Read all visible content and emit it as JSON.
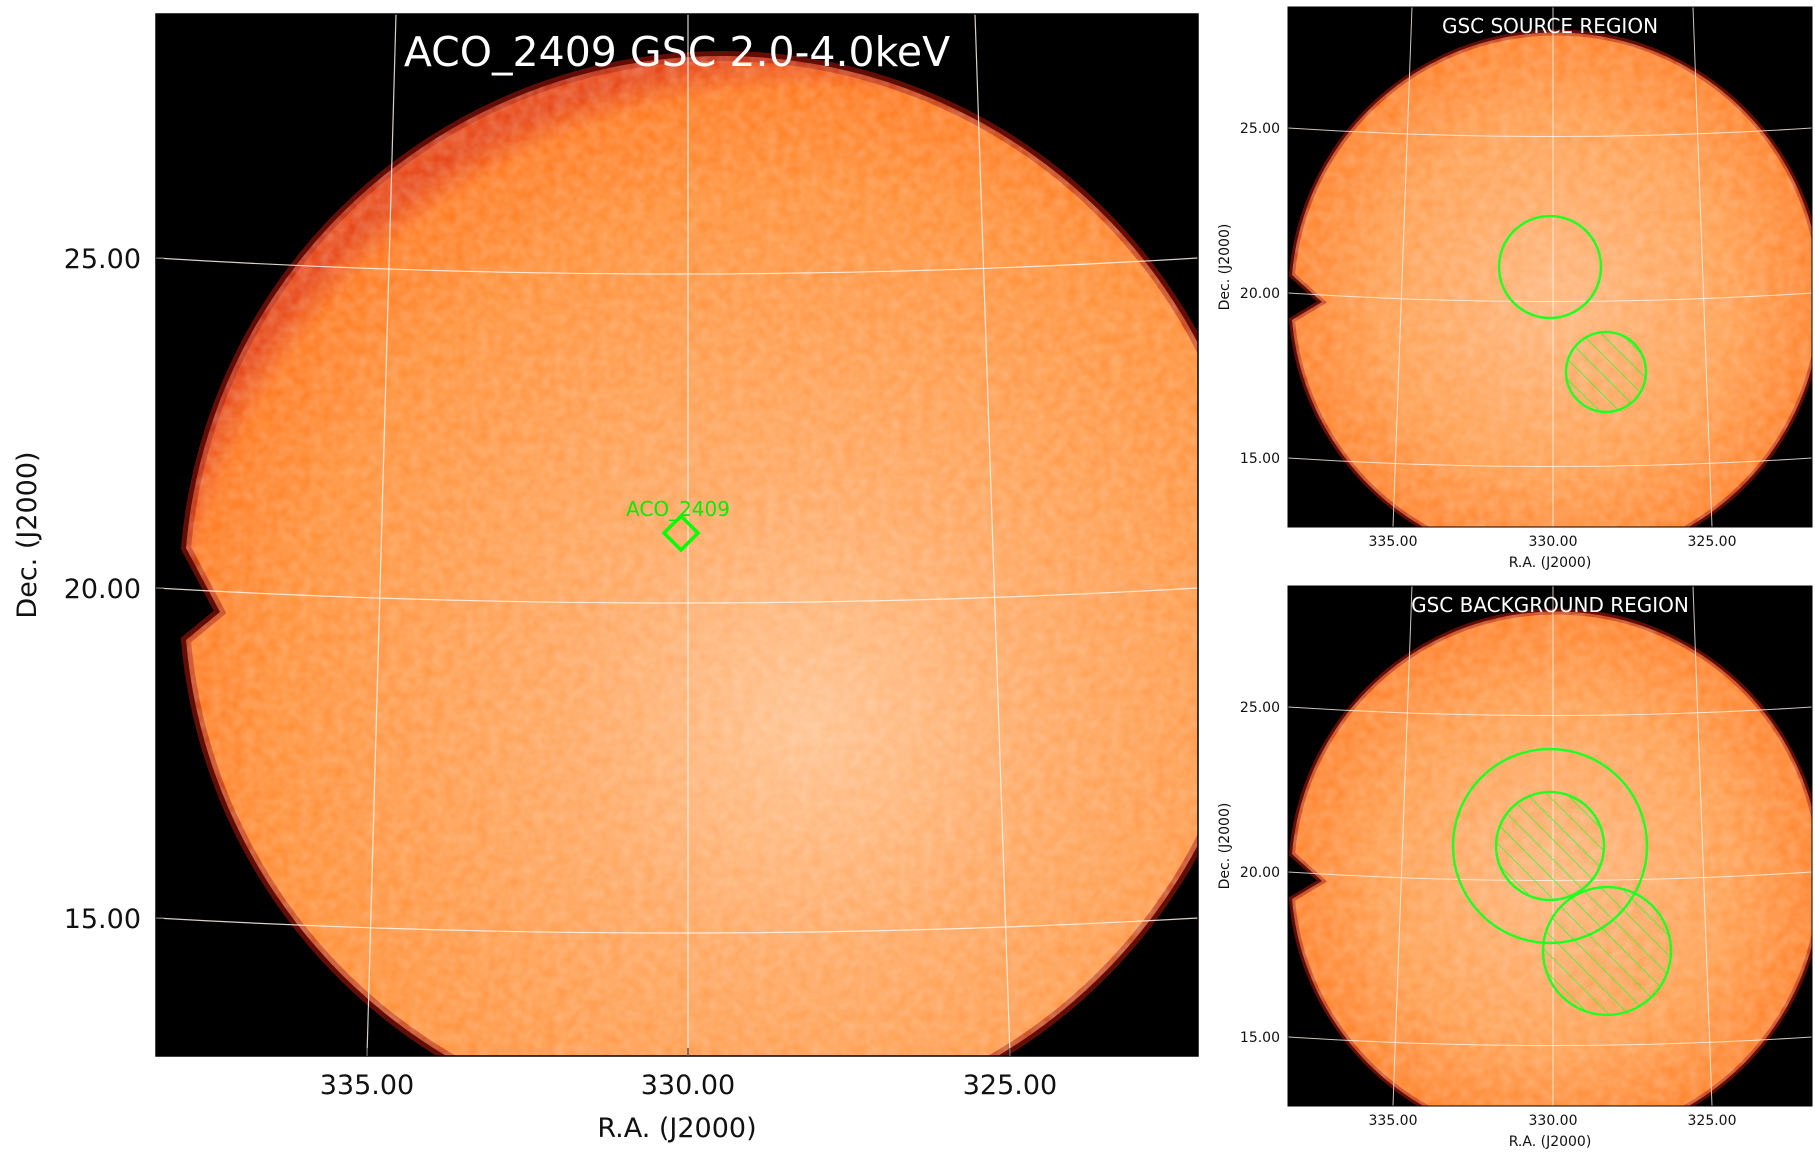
{
  "main": {
    "title": "ACO_2409 GSC 2.0-4.0keV",
    "xlabel": "R.A. (J2000)",
    "ylabel": "Dec. (J2000)",
    "xticks": [
      "335.00",
      "330.00",
      "325.00"
    ],
    "yticks": [
      "25.00",
      "20.00",
      "15.00"
    ],
    "source_marker_label": "ACO_2409"
  },
  "source_panel": {
    "title": "GSC SOURCE REGION",
    "xlabel": "R.A. (J2000)",
    "ylabel": "Dec. (J2000)",
    "xticks": [
      "335.00",
      "330.00",
      "325.00"
    ],
    "yticks": [
      "25.00",
      "20.00",
      "15.00"
    ]
  },
  "background_panel": {
    "title": "GSC BACKGROUND REGION",
    "xlabel": "R.A. (J2000)",
    "ylabel": "Dec. (J2000)",
    "xticks": [
      "335.00",
      "330.00",
      "325.00"
    ],
    "yticks": [
      "25.00",
      "20.00",
      "15.00"
    ]
  },
  "colors": {
    "background": "#000000",
    "image_outer": "#ff7a1a",
    "image_mid": "#ff8c2e",
    "image_center": "#ffb77a",
    "limb": "#c0160a",
    "grid": "#fff2e6",
    "region": "#00ff00",
    "title_text": "#ffffff"
  }
}
